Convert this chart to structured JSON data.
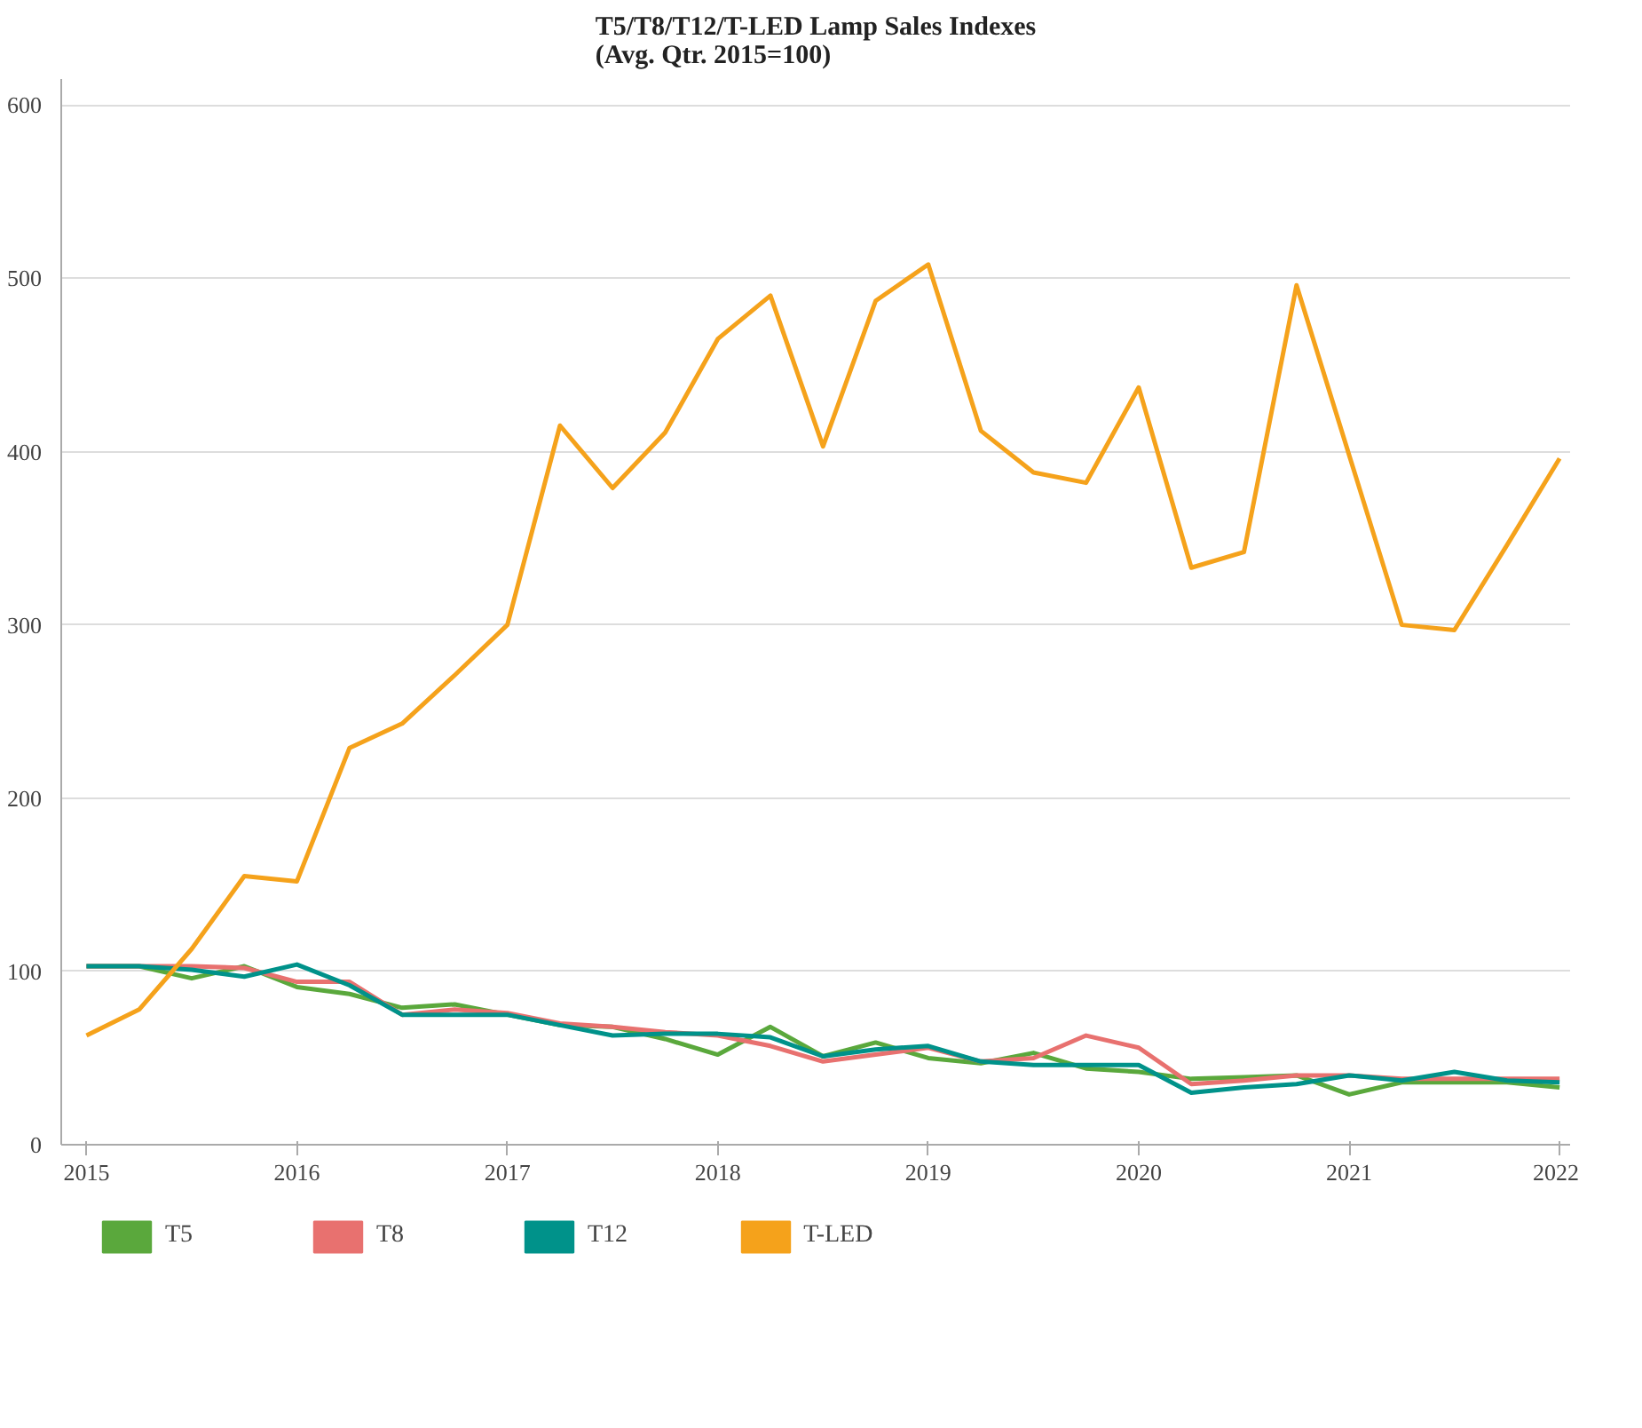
{
  "chart_data": {
    "type": "line",
    "title": "T5/T8/T12/T-LED Lamp Sales Indexes\n(Avg. Qtr. 2015=100)",
    "x": [
      2015,
      2015.25,
      2015.5,
      2015.75,
      2016,
      2016.25,
      2016.5,
      2016.75,
      2017,
      2017.25,
      2017.5,
      2017.75,
      2018,
      2018.25,
      2018.5,
      2018.75,
      2019,
      2019.25,
      2019.5,
      2019.75,
      2020,
      2020.25,
      2020.5,
      2020.75,
      2021,
      2021.25,
      2021.5,
      2021.75,
      2022
    ],
    "series": [
      {
        "name": "T5",
        "color": "#5aa83c",
        "values": [
          103,
          103,
          96,
          103,
          91,
          87,
          79,
          81,
          75,
          69,
          68,
          61,
          52,
          68,
          51,
          59,
          50,
          47,
          53,
          44,
          42,
          38,
          39,
          40,
          29,
          36,
          36,
          36,
          33
        ]
      },
      {
        "name": "T8",
        "color": "#e8716f",
        "values": [
          103,
          103,
          103,
          102,
          94,
          94,
          75,
          78,
          76,
          70,
          68,
          65,
          63,
          57,
          48,
          52,
          56,
          48,
          50,
          63,
          56,
          35,
          37,
          40,
          40,
          38,
          38,
          38,
          38
        ]
      },
      {
        "name": "T12",
        "color": "#00928a",
        "values": [
          103,
          103,
          101,
          97,
          104,
          92,
          75,
          75,
          75,
          69,
          63,
          64,
          64,
          62,
          51,
          55,
          57,
          48,
          46,
          46,
          46,
          30,
          33,
          35,
          40,
          37,
          42,
          37,
          36
        ]
      },
      {
        "name": "T-LED",
        "color": "#f5a21b",
        "values": [
          63,
          78,
          113,
          155,
          152,
          229,
          243,
          271,
          300,
          415,
          379,
          411,
          465,
          490,
          403,
          487,
          508,
          412,
          388,
          382,
          437,
          333,
          342,
          496,
          398,
          300,
          297,
          346,
          396
        ]
      }
    ],
    "xlim": [
      2014.88,
      2022.05
    ],
    "xticks": [
      2015,
      2016,
      2017,
      2018,
      2019,
      2020,
      2021,
      2022
    ],
    "ylim": [
      0,
      615
    ],
    "yticks": [
      0,
      100,
      200,
      300,
      400,
      500,
      600
    ],
    "grid": "y",
    "legend": "bottom",
    "marker": "none",
    "line_style": "solid"
  }
}
